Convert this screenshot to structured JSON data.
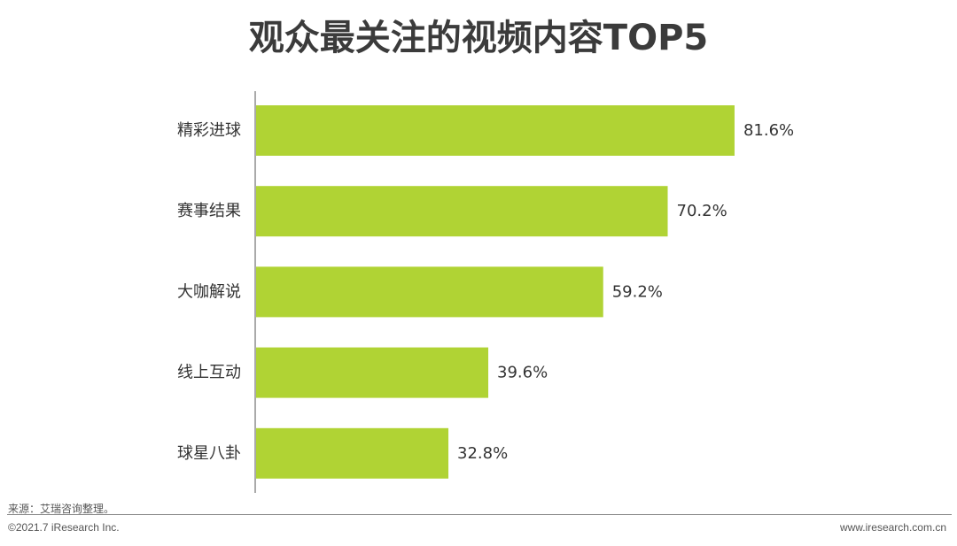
{
  "page": {
    "title": "观众最关注的视频内容TOP5",
    "source": "来源：艾瑞咨询整理。",
    "copyright": "©2021.7 iResearch Inc.",
    "website": "www.iresearch.com.cn"
  },
  "colors": {
    "bar": "#b0d334",
    "axis": "#555555",
    "label": "#333333"
  },
  "chart_data": {
    "type": "bar",
    "orientation": "horizontal",
    "title": "观众最关注的视频内容TOP5",
    "categories": [
      "精彩进球",
      "赛事结果",
      "大咖解说",
      "线上互动",
      "球星八卦"
    ],
    "values": [
      81.6,
      70.2,
      59.2,
      39.6,
      32.8
    ],
    "value_labels": [
      "81.6%",
      "70.2%",
      "59.2%",
      "39.6%",
      "32.8%"
    ],
    "unit": "%",
    "xlim": [
      0,
      100
    ],
    "grid": false,
    "legend": "none"
  }
}
